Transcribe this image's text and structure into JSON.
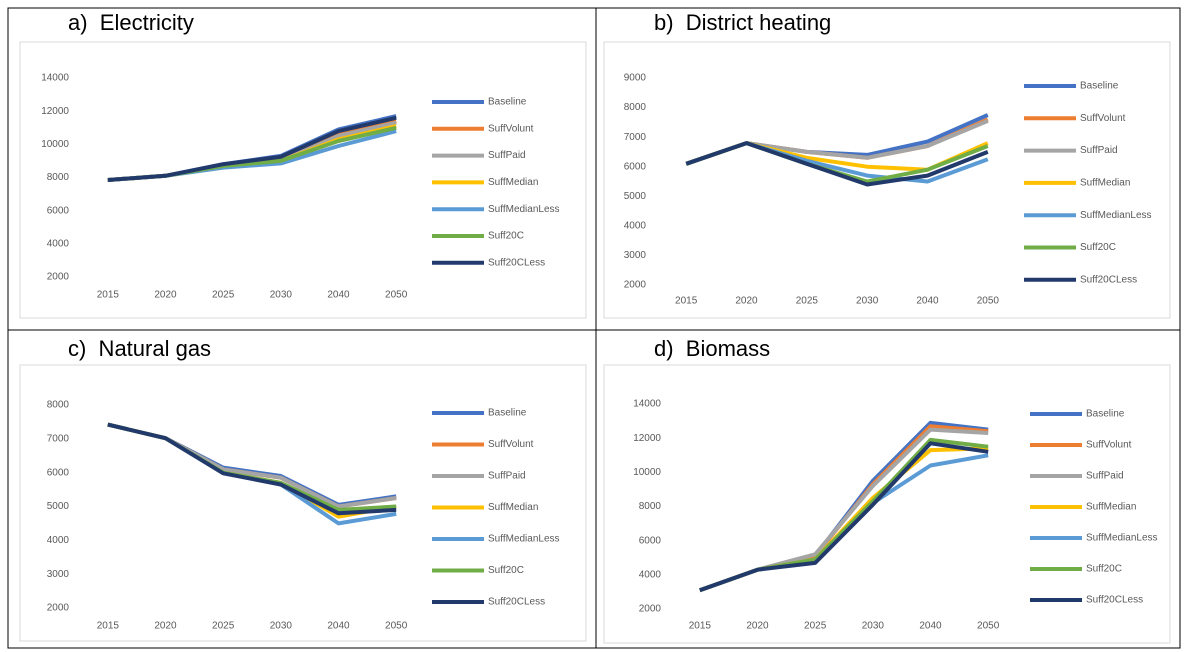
{
  "chart_data": [
    {
      "type": "line",
      "title": "a)  Electricity",
      "categories": [
        "2015",
        "2020",
        "2025",
        "2030",
        "2040",
        "2050"
      ],
      "ylim": [
        2000,
        14000
      ],
      "yticks": [
        2000,
        4000,
        6000,
        8000,
        10000,
        12000,
        14000
      ],
      "series": [
        {
          "name": "Baseline",
          "color": "#4472c4",
          "values": [
            7850,
            8100,
            8800,
            9300,
            10900,
            11700
          ]
        },
        {
          "name": "SuffVolunt",
          "color": "#ed7d31",
          "values": [
            7850,
            8100,
            8750,
            9050,
            10600,
            11400
          ]
        },
        {
          "name": "SuffPaid",
          "color": "#a5a5a5",
          "values": [
            7850,
            8100,
            8750,
            9000,
            10500,
            11300
          ]
        },
        {
          "name": "SuffMedian",
          "color": "#ffc000",
          "values": [
            7850,
            8100,
            8700,
            9000,
            10300,
            11100
          ]
        },
        {
          "name": "SuffMedianLess",
          "color": "#5b9bd5",
          "values": [
            7850,
            8100,
            8600,
            8850,
            9900,
            10800
          ]
        },
        {
          "name": "Suff20C",
          "color": "#70ad47",
          "values": [
            7850,
            8100,
            8700,
            9000,
            10200,
            11000
          ]
        },
        {
          "name": "Suff20CLess",
          "color": "#223a6b",
          "values": [
            7850,
            8100,
            8800,
            9250,
            10800,
            11600
          ]
        }
      ]
    },
    {
      "type": "line",
      "title": "b)  District heating",
      "categories": [
        "2015",
        "2020",
        "2025",
        "2030",
        "2040",
        "2050"
      ],
      "ylim": [
        2000,
        9000
      ],
      "yticks": [
        2000,
        3000,
        4000,
        5000,
        6000,
        7000,
        8000,
        9000
      ],
      "series": [
        {
          "name": "Baseline",
          "color": "#4472c4",
          "values": [
            6100,
            6800,
            6500,
            6400,
            6850,
            7750
          ]
        },
        {
          "name": "SuffVolunt",
          "color": "#ed7d31",
          "values": [
            6100,
            6800,
            6500,
            6300,
            6700,
            7600
          ]
        },
        {
          "name": "SuffPaid",
          "color": "#a5a5a5",
          "values": [
            6100,
            6800,
            6500,
            6300,
            6700,
            7550
          ]
        },
        {
          "name": "SuffMedian",
          "color": "#ffc000",
          "values": [
            6100,
            6800,
            6300,
            6000,
            5900,
            6800
          ]
        },
        {
          "name": "SuffMedianLess",
          "color": "#5b9bd5",
          "values": [
            6100,
            6800,
            6200,
            5700,
            5500,
            6250
          ]
        },
        {
          "name": "Suff20C",
          "color": "#70ad47",
          "values": [
            6100,
            6800,
            6100,
            5500,
            5900,
            6700
          ]
        },
        {
          "name": "Suff20CLess",
          "color": "#223a6b",
          "values": [
            6100,
            6800,
            6100,
            5400,
            5700,
            6500
          ]
        }
      ]
    },
    {
      "type": "line",
      "title": "c)  Natural gas",
      "categories": [
        "2015",
        "2020",
        "2025",
        "2030",
        "2040",
        "2050"
      ],
      "ylim": [
        2000,
        8000
      ],
      "yticks": [
        2000,
        3000,
        4000,
        5000,
        6000,
        7000,
        8000
      ],
      "series": [
        {
          "name": "Baseline",
          "color": "#4472c4",
          "values": [
            7420,
            7020,
            6150,
            5900,
            5050,
            5300
          ]
        },
        {
          "name": "SuffVolunt",
          "color": "#ed7d31",
          "values": [
            7420,
            7020,
            6100,
            5850,
            5000,
            5250
          ]
        },
        {
          "name": "SuffPaid",
          "color": "#a5a5a5",
          "values": [
            7420,
            7020,
            6100,
            5850,
            5000,
            5250
          ]
        },
        {
          "name": "SuffMedian",
          "color": "#ffc000",
          "values": [
            7420,
            7020,
            6000,
            5700,
            4700,
            5000
          ]
        },
        {
          "name": "SuffMedianLess",
          "color": "#5b9bd5",
          "values": [
            7420,
            7020,
            6000,
            5650,
            4500,
            4780
          ]
        },
        {
          "name": "Suff20C",
          "color": "#70ad47",
          "values": [
            7420,
            7020,
            6000,
            5700,
            4900,
            5000
          ]
        },
        {
          "name": "Suff20CLess",
          "color": "#223a6b",
          "values": [
            7420,
            7020,
            5980,
            5650,
            4800,
            4900
          ]
        }
      ]
    },
    {
      "type": "line",
      "title": "d)  Biomass",
      "categories": [
        "2015",
        "2020",
        "2025",
        "2030",
        "2040",
        "2050"
      ],
      "ylim": [
        2000,
        14000
      ],
      "yticks": [
        2000,
        4000,
        6000,
        8000,
        10000,
        12000,
        14000
      ],
      "series": [
        {
          "name": "Baseline",
          "color": "#4472c4",
          "values": [
            3100,
            4300,
            5100,
            9500,
            12900,
            12500
          ]
        },
        {
          "name": "SuffVolunt",
          "color": "#ed7d31",
          "values": [
            3100,
            4300,
            5100,
            9300,
            12700,
            12400
          ]
        },
        {
          "name": "SuffPaid",
          "color": "#a5a5a5",
          "values": [
            3100,
            4300,
            5200,
            9200,
            12500,
            12300
          ]
        },
        {
          "name": "SuffMedian",
          "color": "#ffc000",
          "values": [
            3100,
            4300,
            4900,
            8500,
            11300,
            11400
          ]
        },
        {
          "name": "SuffMedianLess",
          "color": "#5b9bd5",
          "values": [
            3100,
            4300,
            4800,
            8200,
            10400,
            11000
          ]
        },
        {
          "name": "Suff20C",
          "color": "#70ad47",
          "values": [
            3100,
            4300,
            4900,
            8300,
            11900,
            11500
          ]
        },
        {
          "name": "Suff20CLess",
          "color": "#223a6b",
          "values": [
            3100,
            4300,
            4700,
            8100,
            11700,
            11200
          ]
        }
      ]
    }
  ]
}
